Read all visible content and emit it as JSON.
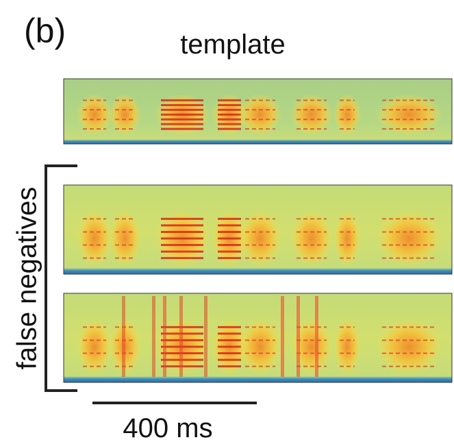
{
  "panel_label": "(b)",
  "title": "template",
  "bracket_label": "false negatives",
  "scale_bar_label": "400 ms"
}
